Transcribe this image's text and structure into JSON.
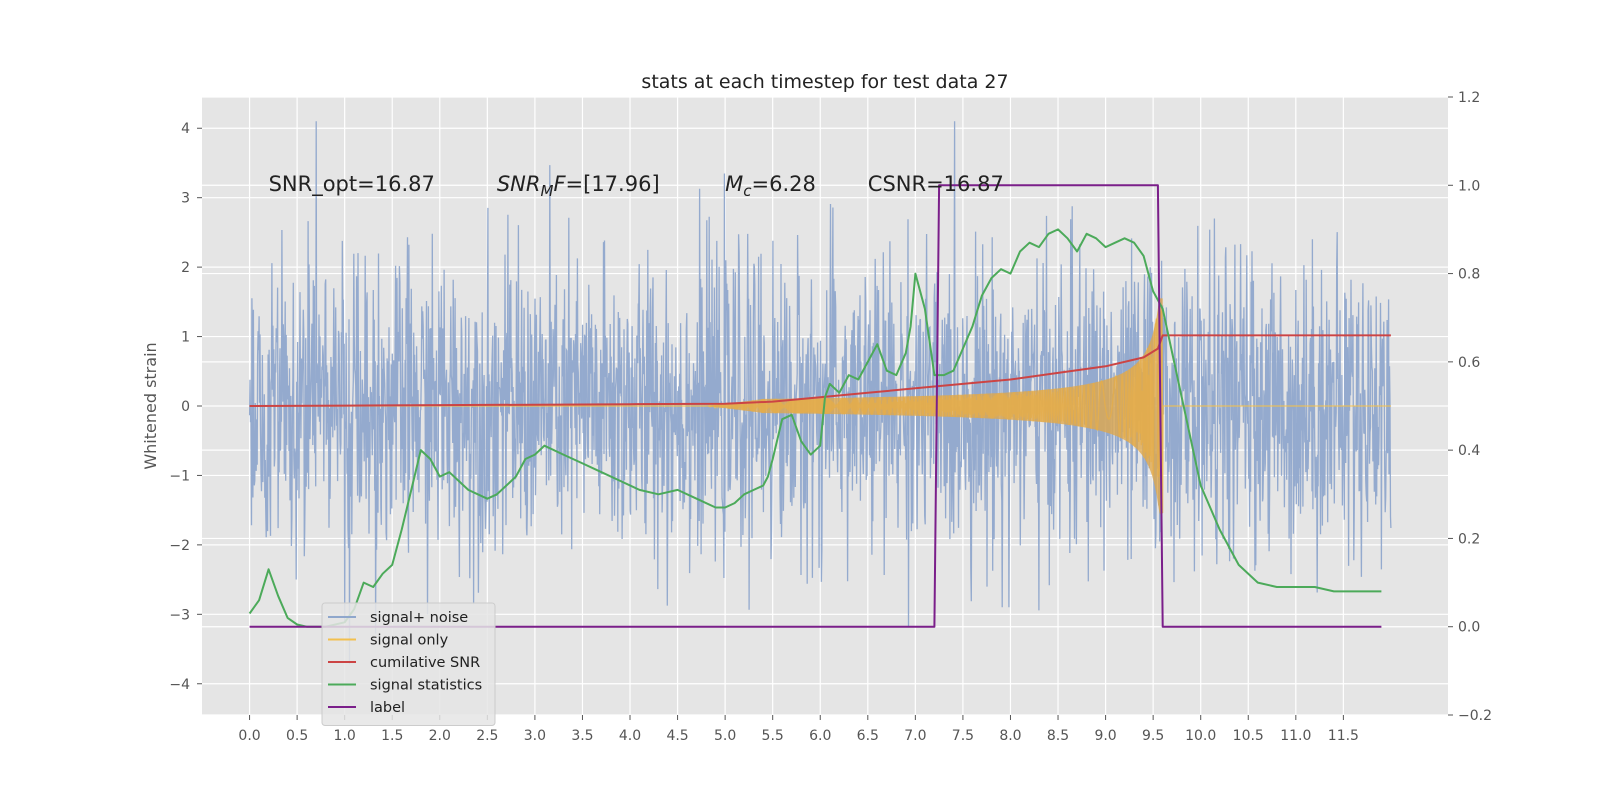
{
  "chart_data": {
    "type": "line",
    "title": "stats at each timestep for test data 27",
    "ylabel": "Whitened strain",
    "xlabel": "",
    "xlim": [
      -0.5,
      12.6
    ],
    "ylim": [
      -4.45,
      4.45
    ],
    "ylim_right": [
      -0.2,
      1.2
    ],
    "x_ticks": [
      "0.0",
      "0.5",
      "1.0",
      "1.5",
      "2.0",
      "2.5",
      "3.0",
      "3.5",
      "4.0",
      "4.5",
      "5.0",
      "5.5",
      "6.0",
      "6.5",
      "7.0",
      "7.5",
      "8.0",
      "8.5",
      "9.0",
      "9.5",
      "10.0",
      "10.5",
      "11.0",
      "11.5"
    ],
    "y_ticks": [
      "4",
      "3",
      "2",
      "1",
      "0",
      "−1",
      "−2",
      "−3",
      "−4"
    ],
    "y_ticks_right": [
      "1.2",
      "1.0",
      "0.8",
      "0.6",
      "0.4",
      "0.2",
      "0.0",
      "−0.2"
    ],
    "grid": true,
    "legend_position": "lower-left",
    "annotations": [
      {
        "label": "SNR_opt=16.87",
        "x": 0.2,
        "y": 3.2,
        "math": false
      },
      {
        "label": "SNR",
        "sub": "M",
        "rest": "F=[17.96]",
        "x": 2.6,
        "y": 3.2,
        "math": true
      },
      {
        "label": "M",
        "sub": "c",
        "rest": "=6.28",
        "x": 5.0,
        "y": 3.2,
        "math": true
      },
      {
        "label": "CSNR=16.87",
        "x": 6.5,
        "y": 3.2,
        "math": false
      }
    ],
    "series": [
      {
        "name": "signal+ noise",
        "color": "#8fa7cc",
        "axis": "left",
        "kind": "noise",
        "t_range": [
          0.0,
          12.0
        ]
      },
      {
        "name": "signal only",
        "color": "#f2c04e",
        "axis": "left",
        "kind": "chirp",
        "t_range": [
          0.0,
          12.0
        ],
        "merger_t": 9.6
      },
      {
        "name": "cumilative SNR",
        "color": "#cc4444",
        "axis": "right",
        "x": [
          0.0,
          1.0,
          2.0,
          3.0,
          4.0,
          5.0,
          5.5,
          6.0,
          6.5,
          7.0,
          7.5,
          8.0,
          8.5,
          9.0,
          9.4,
          9.55,
          9.6,
          12.0
        ],
        "values": [
          0.5,
          0.501,
          0.502,
          0.503,
          0.504,
          0.505,
          0.51,
          0.52,
          0.53,
          0.54,
          0.55,
          0.56,
          0.575,
          0.59,
          0.61,
          0.63,
          0.66,
          0.66
        ]
      },
      {
        "name": "signal statistics",
        "color": "#4caa5a",
        "axis": "right",
        "x": [
          0.0,
          0.1,
          0.2,
          0.3,
          0.4,
          0.5,
          0.6,
          0.8,
          1.0,
          1.1,
          1.2,
          1.3,
          1.4,
          1.5,
          1.6,
          1.7,
          1.8,
          1.9,
          2.0,
          2.1,
          2.2,
          2.3,
          2.4,
          2.5,
          2.6,
          2.7,
          2.8,
          2.9,
          3.0,
          3.1,
          3.3,
          3.5,
          3.7,
          3.9,
          4.1,
          4.3,
          4.5,
          4.7,
          4.9,
          5.0,
          5.1,
          5.2,
          5.3,
          5.4,
          5.45,
          5.5,
          5.6,
          5.7,
          5.8,
          5.9,
          6.0,
          6.05,
          6.1,
          6.2,
          6.3,
          6.4,
          6.5,
          6.6,
          6.7,
          6.8,
          6.9,
          6.95,
          7.0,
          7.1,
          7.2,
          7.3,
          7.4,
          7.5,
          7.6,
          7.7,
          7.8,
          7.9,
          8.0,
          8.1,
          8.2,
          8.3,
          8.4,
          8.5,
          8.6,
          8.7,
          8.8,
          8.9,
          9.0,
          9.1,
          9.2,
          9.3,
          9.4,
          9.5,
          9.6,
          9.7,
          9.8,
          9.9,
          10.0,
          10.2,
          10.4,
          10.6,
          10.8,
          11.0,
          11.2,
          11.4,
          11.6,
          11.8,
          11.9
        ],
        "values": [
          0.03,
          0.06,
          0.13,
          0.07,
          0.02,
          0.005,
          0.0,
          0.0,
          0.01,
          0.04,
          0.1,
          0.09,
          0.12,
          0.14,
          0.22,
          0.31,
          0.4,
          0.38,
          0.34,
          0.35,
          0.33,
          0.31,
          0.3,
          0.29,
          0.3,
          0.32,
          0.34,
          0.38,
          0.39,
          0.41,
          0.39,
          0.37,
          0.35,
          0.33,
          0.31,
          0.3,
          0.31,
          0.29,
          0.27,
          0.27,
          0.28,
          0.3,
          0.31,
          0.32,
          0.34,
          0.38,
          0.47,
          0.48,
          0.42,
          0.39,
          0.41,
          0.52,
          0.55,
          0.53,
          0.57,
          0.56,
          0.6,
          0.64,
          0.58,
          0.57,
          0.62,
          0.68,
          0.8,
          0.72,
          0.57,
          0.57,
          0.58,
          0.63,
          0.68,
          0.75,
          0.79,
          0.81,
          0.8,
          0.85,
          0.87,
          0.86,
          0.89,
          0.9,
          0.88,
          0.85,
          0.89,
          0.88,
          0.86,
          0.87,
          0.88,
          0.87,
          0.84,
          0.76,
          0.72,
          0.62,
          0.52,
          0.42,
          0.32,
          0.22,
          0.14,
          0.1,
          0.09,
          0.09,
          0.09,
          0.08,
          0.08,
          0.08,
          0.08
        ]
      },
      {
        "name": "label",
        "color": "#7b1f8a",
        "axis": "right",
        "x": [
          0.0,
          7.2,
          7.25,
          9.55,
          9.6,
          11.9
        ],
        "values": [
          0.0,
          0.0,
          1.0,
          1.0,
          0.0,
          0.0
        ]
      }
    ]
  }
}
